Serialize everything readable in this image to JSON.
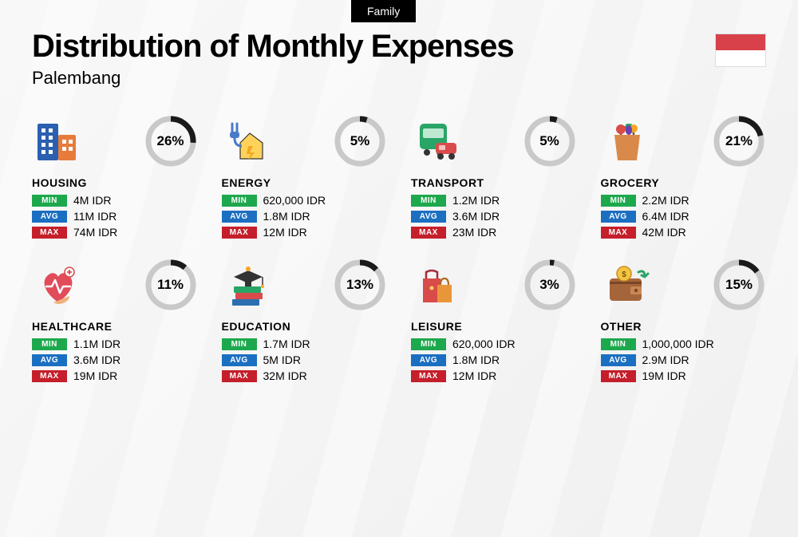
{
  "badge": "Family",
  "title": "Distribution of Monthly Expenses",
  "subtitle": "Palembang",
  "colors": {
    "min": "#1ea84d",
    "avg": "#1b6fc1",
    "max": "#c41f2a",
    "donut_fg": "#1a1a1a",
    "donut_bg": "#c9c9c9"
  },
  "labels": {
    "min": "MIN",
    "avg": "AVG",
    "max": "MAX"
  },
  "donut": {
    "radius": 28,
    "stroke": 7
  },
  "categories": [
    {
      "key": "housing",
      "name": "HOUSING",
      "pct": 26,
      "min": "4M IDR",
      "avg": "11M IDR",
      "max": "74M IDR",
      "icon": "buildings"
    },
    {
      "key": "energy",
      "name": "ENERGY",
      "pct": 5,
      "min": "620,000 IDR",
      "avg": "1.8M IDR",
      "max": "12M IDR",
      "icon": "energy"
    },
    {
      "key": "transport",
      "name": "TRANSPORT",
      "pct": 5,
      "min": "1.2M IDR",
      "avg": "3.6M IDR",
      "max": "23M IDR",
      "icon": "transport"
    },
    {
      "key": "grocery",
      "name": "GROCERY",
      "pct": 21,
      "min": "2.2M IDR",
      "avg": "6.4M IDR",
      "max": "42M IDR",
      "icon": "grocery"
    },
    {
      "key": "healthcare",
      "name": "HEALTHCARE",
      "pct": 11,
      "min": "1.1M IDR",
      "avg": "3.6M IDR",
      "max": "19M IDR",
      "icon": "health"
    },
    {
      "key": "education",
      "name": "EDUCATION",
      "pct": 13,
      "min": "1.7M IDR",
      "avg": "5M IDR",
      "max": "32M IDR",
      "icon": "education"
    },
    {
      "key": "leisure",
      "name": "LEISURE",
      "pct": 3,
      "min": "620,000 IDR",
      "avg": "1.8M IDR",
      "max": "12M IDR",
      "icon": "leisure"
    },
    {
      "key": "other",
      "name": "OTHER",
      "pct": 15,
      "min": "1,000,000 IDR",
      "avg": "2.9M IDR",
      "max": "19M IDR",
      "icon": "wallet"
    }
  ]
}
